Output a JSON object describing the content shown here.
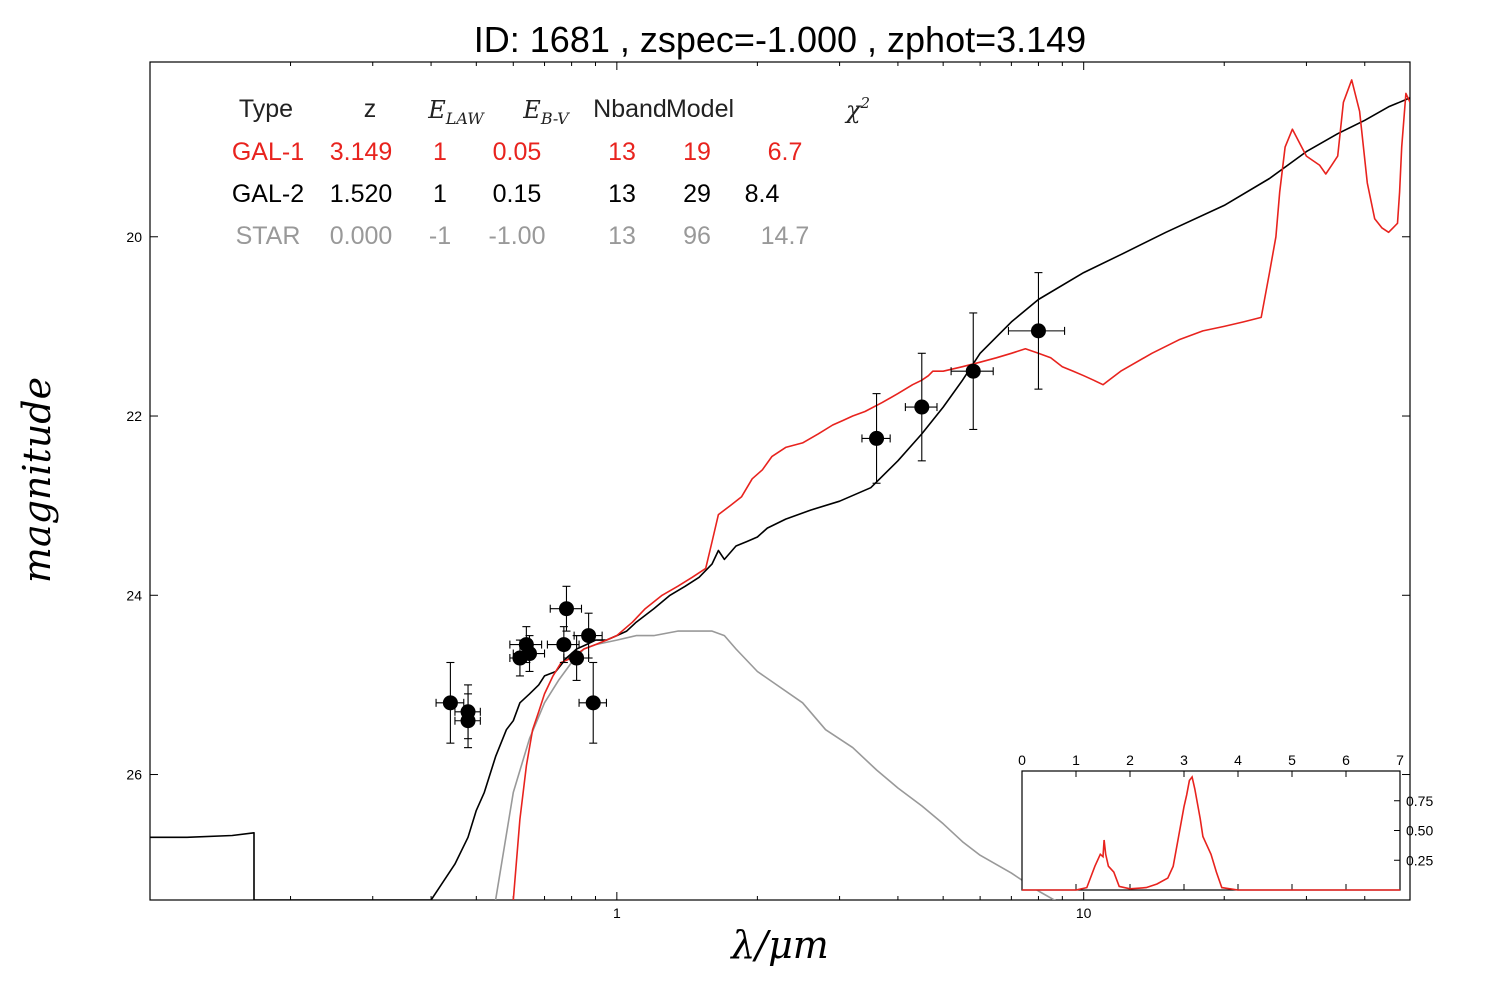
{
  "chart_data": {
    "type": "line",
    "title": "ID:  1681  , zspec=-1.000 , zphot=3.149",
    "xlabel": "λ/μm",
    "ylabel": "magnitude",
    "xscale": "log",
    "xlim": [
      0.1,
      50
    ],
    "ylim": [
      27.4,
      18.05
    ],
    "x_tick_labels": [
      "1",
      "10"
    ],
    "x_ticks": [
      1,
      10
    ],
    "y_tick_labels": [
      "20",
      "22",
      "24",
      "26"
    ],
    "y_ticks": [
      20,
      22,
      24,
      26
    ],
    "legend_table": {
      "headers": [
        "Type",
        "z",
        "E_LAW",
        "E_B-V",
        "Nband",
        "Model",
        "χ2"
      ],
      "rows": [
        {
          "cells": [
            "GAL-1",
            "3.149",
            "1",
            "0.05",
            "13",
            "19",
            "6.7"
          ],
          "color": "#e8231e"
        },
        {
          "cells": [
            "GAL-2",
            "1.520",
            "1",
            "0.15",
            "13",
            "29",
            "8.4"
          ],
          "color": "#000000"
        },
        {
          "cells": [
            "STAR",
            "0.000",
            "-1",
            "-1.00",
            "13",
            "96",
            "14.7"
          ],
          "color": "#999999"
        }
      ]
    },
    "series": [
      {
        "name": "GAL-1",
        "color": "#e8231e",
        "x": [
          0.6,
          0.62,
          0.64,
          0.66,
          0.68,
          0.7,
          0.73,
          0.76,
          0.8,
          0.85,
          0.9,
          0.95,
          1.0,
          1.08,
          1.15,
          1.25,
          1.35,
          1.45,
          1.55,
          1.6,
          1.65,
          1.75,
          1.85,
          1.95,
          2.05,
          2.15,
          2.3,
          2.5,
          2.7,
          2.9,
          3.05,
          3.2,
          3.4,
          3.7,
          4.0,
          4.3,
          4.5,
          4.65,
          4.75,
          4.85,
          5.0,
          5.5,
          6.0,
          6.5,
          7.0,
          7.5,
          8.0,
          8.5,
          9.0,
          9.5,
          10.0,
          10.5,
          11.0,
          12.0,
          14.0,
          16.0,
          18.0,
          20.0,
          22.0,
          24.0,
          25.0,
          25.8,
          26.3,
          27.0,
          28.0,
          30.0,
          32.0,
          33.0,
          34.0,
          35.0,
          36.0,
          37.5,
          39.0,
          40.5,
          42.0,
          43.5,
          45.0,
          46.0,
          47.0,
          47.5,
          48.0,
          49.0,
          50.0
        ],
        "y": [
          27.4,
          26.5,
          25.9,
          25.5,
          25.3,
          25.1,
          24.9,
          24.75,
          24.7,
          24.6,
          24.55,
          24.5,
          24.45,
          24.3,
          24.15,
          24.0,
          23.9,
          23.8,
          23.7,
          23.4,
          23.1,
          23.0,
          22.9,
          22.7,
          22.6,
          22.45,
          22.35,
          22.3,
          22.2,
          22.1,
          22.05,
          22.0,
          21.95,
          21.85,
          21.75,
          21.65,
          21.6,
          21.55,
          21.5,
          21.5,
          21.5,
          21.45,
          21.4,
          21.35,
          21.3,
          21.25,
          21.3,
          21.35,
          21.45,
          21.5,
          21.55,
          21.6,
          21.65,
          21.5,
          21.3,
          21.15,
          21.05,
          21.0,
          20.95,
          20.9,
          20.4,
          20.0,
          19.5,
          19.0,
          18.8,
          19.1,
          19.2,
          19.3,
          19.2,
          19.1,
          18.5,
          18.25,
          18.6,
          19.4,
          19.8,
          19.9,
          19.95,
          19.9,
          19.85,
          19.5,
          19.0,
          18.4,
          18.5
        ]
      },
      {
        "name": "GAL-2",
        "color": "#000000",
        "x": [
          0.1,
          0.12,
          0.15,
          0.167,
          0.167,
          0.4,
          0.45,
          0.48,
          0.5,
          0.52,
          0.55,
          0.58,
          0.6,
          0.62,
          0.65,
          0.68,
          0.7,
          0.74,
          0.78,
          0.82,
          0.86,
          0.9,
          0.95,
          1.0,
          1.05,
          1.1,
          1.2,
          1.3,
          1.4,
          1.5,
          1.6,
          1.65,
          1.7,
          1.8,
          1.9,
          2.0,
          2.1,
          2.3,
          2.6,
          3.0,
          3.5,
          4.0,
          4.5,
          5.0,
          5.5,
          6.0,
          7.0,
          8.0,
          10.0,
          12.0,
          15.0,
          20.0,
          25.0,
          30.0,
          35.0,
          40.0,
          45.0,
          50.0
        ],
        "y": [
          26.7,
          26.7,
          26.68,
          26.65,
          27.4,
          27.4,
          27.0,
          26.7,
          26.4,
          26.2,
          25.8,
          25.5,
          25.4,
          25.2,
          25.1,
          25.0,
          24.9,
          24.85,
          24.7,
          24.6,
          24.55,
          24.5,
          24.5,
          24.45,
          24.4,
          24.3,
          24.15,
          24.0,
          23.9,
          23.8,
          23.65,
          23.5,
          23.6,
          23.45,
          23.4,
          23.35,
          23.25,
          23.15,
          23.05,
          22.95,
          22.8,
          22.5,
          22.2,
          21.9,
          21.6,
          21.3,
          20.95,
          20.7,
          20.4,
          20.2,
          19.95,
          19.65,
          19.35,
          19.05,
          18.85,
          18.7,
          18.55,
          18.45
        ]
      },
      {
        "name": "STAR",
        "color": "#999999",
        "x": [
          0.55,
          0.6,
          0.65,
          0.7,
          0.75,
          0.8,
          0.85,
          0.9,
          1.0,
          1.1,
          1.2,
          1.35,
          1.5,
          1.6,
          1.7,
          1.8,
          2.0,
          2.2,
          2.5,
          2.8,
          3.2,
          3.6,
          4.0,
          4.5,
          5.0,
          5.5,
          6.0,
          7.0,
          8.0,
          9.0
        ],
        "y": [
          27.4,
          26.2,
          25.6,
          25.2,
          24.95,
          24.75,
          24.6,
          24.55,
          24.5,
          24.45,
          24.45,
          24.4,
          24.4,
          24.4,
          24.45,
          24.6,
          24.85,
          25.0,
          25.2,
          25.5,
          25.7,
          25.95,
          26.15,
          26.35,
          26.55,
          26.75,
          26.9,
          27.1,
          27.3,
          27.45
        ]
      }
    ],
    "points": [
      {
        "x": 0.44,
        "y": 25.2,
        "xerr": 0.03,
        "yerr": 0.45
      },
      {
        "x": 0.48,
        "y": 25.3,
        "xerr": 0.03,
        "yerr": 0.3
      },
      {
        "x": 0.48,
        "y": 25.4,
        "xerr": 0.03,
        "yerr": 0.3
      },
      {
        "x": 0.62,
        "y": 24.7,
        "xerr": 0.03,
        "yerr": 0.2
      },
      {
        "x": 0.64,
        "y": 24.55,
        "xerr": 0.05,
        "yerr": 0.2
      },
      {
        "x": 0.65,
        "y": 24.65,
        "xerr": 0.05,
        "yerr": 0.2
      },
      {
        "x": 0.77,
        "y": 24.55,
        "xerr": 0.06,
        "yerr": 0.2
      },
      {
        "x": 0.78,
        "y": 24.15,
        "xerr": 0.06,
        "yerr": 0.25
      },
      {
        "x": 0.82,
        "y": 24.7,
        "xerr": 0.05,
        "yerr": 0.25
      },
      {
        "x": 0.87,
        "y": 24.45,
        "xerr": 0.06,
        "yerr": 0.25
      },
      {
        "x": 0.89,
        "y": 25.2,
        "xerr": 0.06,
        "yerr": 0.45
      },
      {
        "x": 3.6,
        "y": 22.25,
        "xerr": 0.25,
        "yerr": 0.5
      },
      {
        "x": 4.5,
        "y": 21.9,
        "xerr": 0.35,
        "yerr": 0.6
      },
      {
        "x": 5.8,
        "y": 21.5,
        "xerr": 0.6,
        "yerr": 0.65
      },
      {
        "x": 8.0,
        "y": 21.05,
        "xerr": 1.1,
        "yerr": 0.65
      }
    ],
    "inset": {
      "type": "line",
      "xlim": [
        0,
        7
      ],
      "x_tick_labels": [
        "0",
        "1",
        "2",
        "3",
        "4",
        "5",
        "6",
        "7"
      ],
      "x_ticks": [
        0,
        1,
        2,
        3,
        4,
        5,
        6,
        7
      ],
      "y_tick_labels": [
        "0.25",
        "0.50",
        "0.75"
      ],
      "y_ticks": [
        0.25,
        0.5,
        0.75
      ],
      "ylim": [
        0,
        1.0
      ],
      "series": [
        {
          "color": "#e8231e",
          "x": [
            0,
            1.0,
            1.2,
            1.35,
            1.45,
            1.5,
            1.52,
            1.55,
            1.6,
            1.7,
            1.8,
            2.0,
            2.3,
            2.5,
            2.7,
            2.8,
            2.9,
            3.0,
            3.05,
            3.1,
            3.15,
            3.2,
            3.3,
            3.35,
            3.4,
            3.5,
            3.6,
            3.7,
            4.0,
            7.0
          ],
          "y": [
            0,
            0,
            0.02,
            0.2,
            0.3,
            0.28,
            0.42,
            0.3,
            0.2,
            0.15,
            0.03,
            0.01,
            0.02,
            0.05,
            0.1,
            0.2,
            0.45,
            0.7,
            0.8,
            0.92,
            0.95,
            0.85,
            0.6,
            0.45,
            0.4,
            0.3,
            0.15,
            0.02,
            0,
            0
          ]
        }
      ]
    }
  }
}
